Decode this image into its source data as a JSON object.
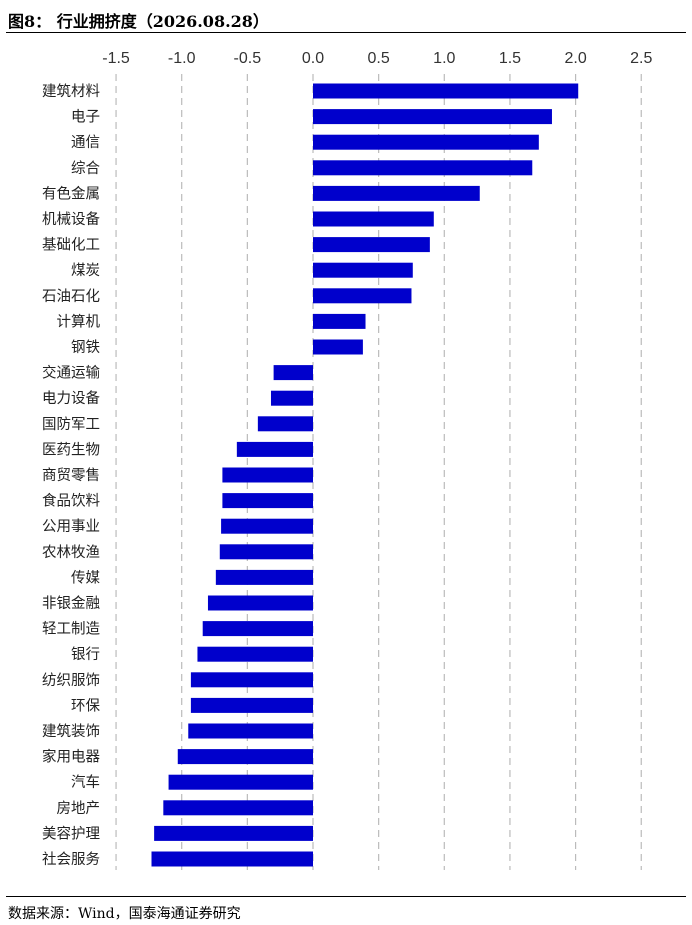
{
  "header": {
    "title": "图8：  行业拥挤度（2026.08.28）"
  },
  "footer": {
    "source": "数据来源：Wind，国泰海通证券研究"
  },
  "colors": {
    "bar": "#0000CC",
    "grid": "#BBBBBB"
  },
  "chart_data": {
    "type": "bar",
    "orientation": "horizontal",
    "title": "",
    "xlabel": "",
    "ylabel": "",
    "xlim": [
      -1.5,
      2.5
    ],
    "xticks": [
      "-1.5",
      "-1.0",
      "-0.5",
      "0.0",
      "0.5",
      "1.0",
      "1.5",
      "2.0",
      "2.5"
    ],
    "grid": "vertical-dashed",
    "categories": [
      "建筑材料",
      "电子",
      "通信",
      "综合",
      "有色金属",
      "机械设备",
      "基础化工",
      "煤炭",
      "石油石化",
      "计算机",
      "钢铁",
      "交通运输",
      "电力设备",
      "国防军工",
      "医药生物",
      "商贸零售",
      "食品饮料",
      "公用事业",
      "农林牧渔",
      "传媒",
      "非银金融",
      "轻工制造",
      "银行",
      "纺织服饰",
      "环保",
      "建筑装饰",
      "家用电器",
      "汽车",
      "房地产",
      "美容护理",
      "社会服务"
    ],
    "values": [
      2.02,
      1.82,
      1.72,
      1.67,
      1.27,
      0.92,
      0.89,
      0.76,
      0.75,
      0.4,
      0.38,
      -0.3,
      -0.32,
      -0.42,
      -0.58,
      -0.69,
      -0.69,
      -0.7,
      -0.71,
      -0.74,
      -0.8,
      -0.84,
      -0.88,
      -0.93,
      -0.93,
      -0.95,
      -1.03,
      -1.1,
      -1.14,
      -1.21,
      -1.23
    ]
  }
}
